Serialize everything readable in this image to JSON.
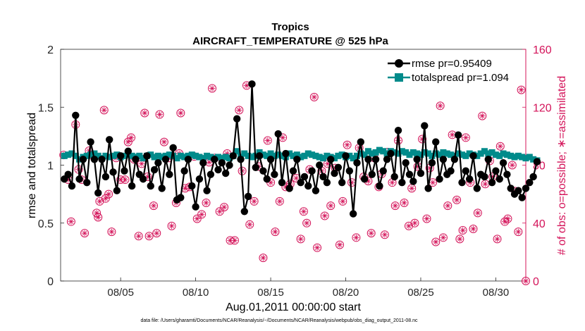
{
  "chart_data": {
    "type": "line",
    "title": "Tropics",
    "subtitle": "AIRCRAFT_TEMPERATURE @ 525 hPa",
    "xlabel": "Aug.01,2011 00:00:00 start",
    "ylabel": "rmse and totalspread",
    "y2label": "# of obs: o=possible; ∗=assimilated",
    "footnote": "data file: /Users/gharamti/Documents/NCAR/Reanalysis/~/Documents/NCAR/Reanalysis/webpub/obs_diag_output_2011-08.nc",
    "xlim": [
      1,
      32
    ],
    "ylim": [
      0,
      2
    ],
    "y2lim": [
      0,
      160
    ],
    "xticks": [
      5,
      10,
      15,
      20,
      25,
      30
    ],
    "xticklabels": [
      "08/05",
      "08/10",
      "08/15",
      "08/20",
      "08/25",
      "08/30"
    ],
    "yticks": [
      "0",
      "0.5",
      "1",
      "1.5",
      "2"
    ],
    "y2ticks": [
      "0",
      "40",
      "80",
      "120",
      "160"
    ],
    "colors": {
      "rmse": "#000000",
      "spread": "#008b8b",
      "obs": "#d4145a"
    },
    "series": [
      {
        "name": "rmse pr=0.95409",
        "axis": "left",
        "start": 1.25,
        "step": 0.25,
        "values": [
          0.88,
          0.92,
          0.82,
          1.43,
          0.88,
          1.05,
          0.85,
          1.2,
          1.05,
          0.76,
          1.05,
          0.9,
          1.22,
          0.94,
          0.78,
          1.08,
          0.95,
          1.12,
          0.82,
          1.05,
          0.92,
          0.88,
          1.08,
          0.82,
          0.96,
          1.02,
          0.8,
          1.05,
          0.92,
          1.15,
          0.7,
          0.72,
          0.95,
          1.05,
          0.82,
          0.64,
          0.88,
          1.02,
          0.78,
          0.92,
          1.05,
          0.96,
          1.02,
          0.93,
          1.0,
          1.08,
          1.4,
          1.05,
          0.6,
          0.73,
          1.7,
          0.98,
          1.08,
          0.95,
          0.88,
          1.05,
          0.92,
          1.27,
          0.85,
          1.1,
          0.8,
          0.95,
          1.05,
          0.85,
          0.9,
          0.82,
          0.95,
          0.78,
          1.0,
          0.9,
          0.85,
          1.05,
          0.93,
          0.98,
          0.85,
          1.08,
          0.95,
          0.58,
          1.02,
          1.2,
          0.88,
          1.05,
          0.92,
          1.05,
          0.82,
          0.95,
          1.05,
          1.1,
          0.9,
          1.3,
          0.85,
          1.02,
          0.92,
          0.86,
          1.05,
          0.93,
          1.34,
          0.8,
          1.02,
          1.2,
          0.88,
          1.05,
          0.92,
          0.95,
          1.05,
          1.26,
          0.85,
          0.95,
          0.88,
          1.08,
          0.8,
          0.92,
          0.9,
          1.05,
          0.85,
          0.95,
          0.88,
          1.02,
          0.92,
          0.8,
          0.75,
          0.78,
          0.72,
          0.8,
          0.85,
          0.9,
          1.03
        ]
      },
      {
        "name": "totalspread pr=1.094",
        "axis": "left",
        "start": 1.25,
        "step": 0.25,
        "values": [
          1.08,
          1.09,
          1.1,
          1.08,
          1.05,
          1.07,
          1.08,
          1.09,
          1.1,
          1.08,
          1.06,
          1.08,
          1.07,
          1.08,
          1.09,
          1.07,
          1.08,
          1.09,
          1.08,
          1.07,
          1.08,
          1.06,
          1.08,
          1.09,
          1.07,
          1.08,
          1.07,
          1.08,
          1.09,
          1.08,
          1.06,
          1.08,
          1.07,
          1.08,
          1.09,
          1.08,
          1.07,
          1.06,
          1.08,
          1.07,
          1.06,
          1.07,
          1.06,
          1.07,
          1.06,
          1.08,
          1.12,
          1.07,
          1.1,
          1.08,
          1.07,
          1.08,
          1.11,
          1.09,
          1.08,
          1.1,
          1.08,
          1.09,
          1.08,
          1.07,
          1.1,
          1.08,
          1.09,
          1.07,
          1.08,
          1.1,
          1.09,
          1.08,
          1.07,
          1.06,
          1.08,
          1.07,
          1.06,
          1.08,
          1.09,
          1.07,
          1.08,
          1.06,
          1.08,
          1.1,
          1.09,
          1.12,
          1.1,
          1.11,
          1.13,
          1.12,
          1.1,
          1.12,
          1.11,
          1.1,
          1.12,
          1.11,
          1.09,
          1.11,
          1.1,
          1.09,
          1.11,
          1.1,
          1.08,
          1.1,
          1.09,
          1.11,
          1.1,
          1.09,
          1.08,
          1.1,
          1.09,
          1.08,
          1.1,
          1.09,
          1.08,
          1.1,
          1.12,
          1.1,
          1.11,
          1.09,
          1.08,
          1.1,
          1.09,
          1.08,
          1.07,
          1.08,
          1.07,
          1.06,
          1.07,
          1.05,
          1.04
        ]
      },
      {
        "name": "# of obs",
        "axis": "right",
        "marker": "circle-asterisk",
        "points": [
          [
            1.2,
            87
          ],
          [
            1.5,
            70
          ],
          [
            1.7,
            41
          ],
          [
            2.0,
            108
          ],
          [
            2.2,
            77
          ],
          [
            2.4,
            70
          ],
          [
            2.6,
            33
          ],
          [
            2.9,
            90
          ],
          [
            3.1,
            87
          ],
          [
            3.4,
            47
          ],
          [
            3.5,
            44
          ],
          [
            3.6,
            55
          ],
          [
            3.9,
            118
          ],
          [
            4.0,
            57
          ],
          [
            4.2,
            60
          ],
          [
            4.4,
            34
          ],
          [
            4.7,
            85
          ],
          [
            5.0,
            70
          ],
          [
            5.3,
            70
          ],
          [
            5.5,
            96
          ],
          [
            5.7,
            99
          ],
          [
            5.9,
            84
          ],
          [
            6.2,
            31
          ],
          [
            6.4,
            81
          ],
          [
            6.6,
            116
          ],
          [
            6.8,
            72
          ],
          [
            6.9,
            31
          ],
          [
            7.2,
            52
          ],
          [
            7.4,
            33
          ],
          [
            7.6,
            115
          ],
          [
            7.9,
            96
          ],
          [
            8.2,
            85
          ],
          [
            8.4,
            38
          ],
          [
            8.7,
            54
          ],
          [
            8.9,
            88
          ],
          [
            9.0,
            116
          ],
          [
            9.3,
            64
          ],
          [
            9.6,
            65
          ],
          [
            9.9,
            86
          ],
          [
            10.1,
            43
          ],
          [
            10.4,
            46
          ],
          [
            10.7,
            54
          ],
          [
            10.9,
            82
          ],
          [
            11.1,
            133
          ],
          [
            11.3,
            85
          ],
          [
            11.6,
            48
          ],
          [
            11.9,
            51
          ],
          [
            12.1,
            88
          ],
          [
            12.3,
            28
          ],
          [
            12.6,
            28
          ],
          [
            12.9,
            118
          ],
          [
            13.1,
            76
          ],
          [
            13.4,
            135
          ],
          [
            13.6,
            39
          ],
          [
            13.9,
            55
          ],
          [
            14.2,
            79
          ],
          [
            14.5,
            16
          ],
          [
            14.8,
            97
          ],
          [
            15.0,
            68
          ],
          [
            15.3,
            34
          ],
          [
            15.6,
            55
          ],
          [
            15.8,
            99
          ],
          [
            16.0,
            65
          ],
          [
            16.3,
            67
          ],
          [
            16.7,
            71
          ],
          [
            17.0,
            29
          ],
          [
            17.2,
            48
          ],
          [
            17.4,
            40
          ],
          [
            17.6,
            77
          ],
          [
            17.9,
            127
          ],
          [
            18.1,
            23
          ],
          [
            18.4,
            76
          ],
          [
            18.6,
            45
          ],
          [
            18.8,
            81
          ],
          [
            19.0,
            52
          ],
          [
            19.3,
            78
          ],
          [
            19.6,
            25
          ],
          [
            19.8,
            55
          ],
          [
            20.1,
            94
          ],
          [
            20.4,
            68
          ],
          [
            20.7,
            30
          ],
          [
            20.9,
            92
          ],
          [
            21.2,
            72
          ],
          [
            21.5,
            69
          ],
          [
            21.7,
            33
          ],
          [
            21.9,
            85
          ],
          [
            22.2,
            65
          ],
          [
            22.4,
            74
          ],
          [
            22.6,
            32
          ],
          [
            22.8,
            89
          ],
          [
            23.1,
            68
          ],
          [
            23.3,
            52
          ],
          [
            23.5,
            97
          ],
          [
            23.9,
            54
          ],
          [
            24.2,
            38
          ],
          [
            24.4,
            64
          ],
          [
            24.6,
            40
          ],
          [
            24.8,
            79
          ],
          [
            25.1,
            98
          ],
          [
            25.4,
            43
          ],
          [
            25.6,
            78
          ],
          [
            25.8,
            68
          ],
          [
            26.0,
            27
          ],
          [
            26.3,
            121
          ],
          [
            26.5,
            30
          ],
          [
            26.8,
            52
          ],
          [
            27.1,
            101
          ],
          [
            27.4,
            56
          ],
          [
            27.6,
            29
          ],
          [
            27.8,
            35
          ],
          [
            28.0,
            99
          ],
          [
            28.3,
            68
          ],
          [
            28.5,
            36
          ],
          [
            28.8,
            47
          ],
          [
            29.1,
            114
          ],
          [
            29.3,
            67
          ],
          [
            29.6,
            83
          ],
          [
            29.8,
            72
          ],
          [
            30.1,
            29
          ],
          [
            30.3,
            93
          ],
          [
            30.6,
            41
          ],
          [
            30.8,
            43
          ],
          [
            31.1,
            80
          ],
          [
            31.3,
            62
          ],
          [
            31.5,
            34
          ],
          [
            31.7,
            132
          ],
          [
            32.0,
            0
          ]
        ]
      }
    ],
    "legend": {
      "position": "top-right",
      "entries": [
        "rmse pr=0.95409",
        "totalspread pr=1.094"
      ]
    }
  }
}
